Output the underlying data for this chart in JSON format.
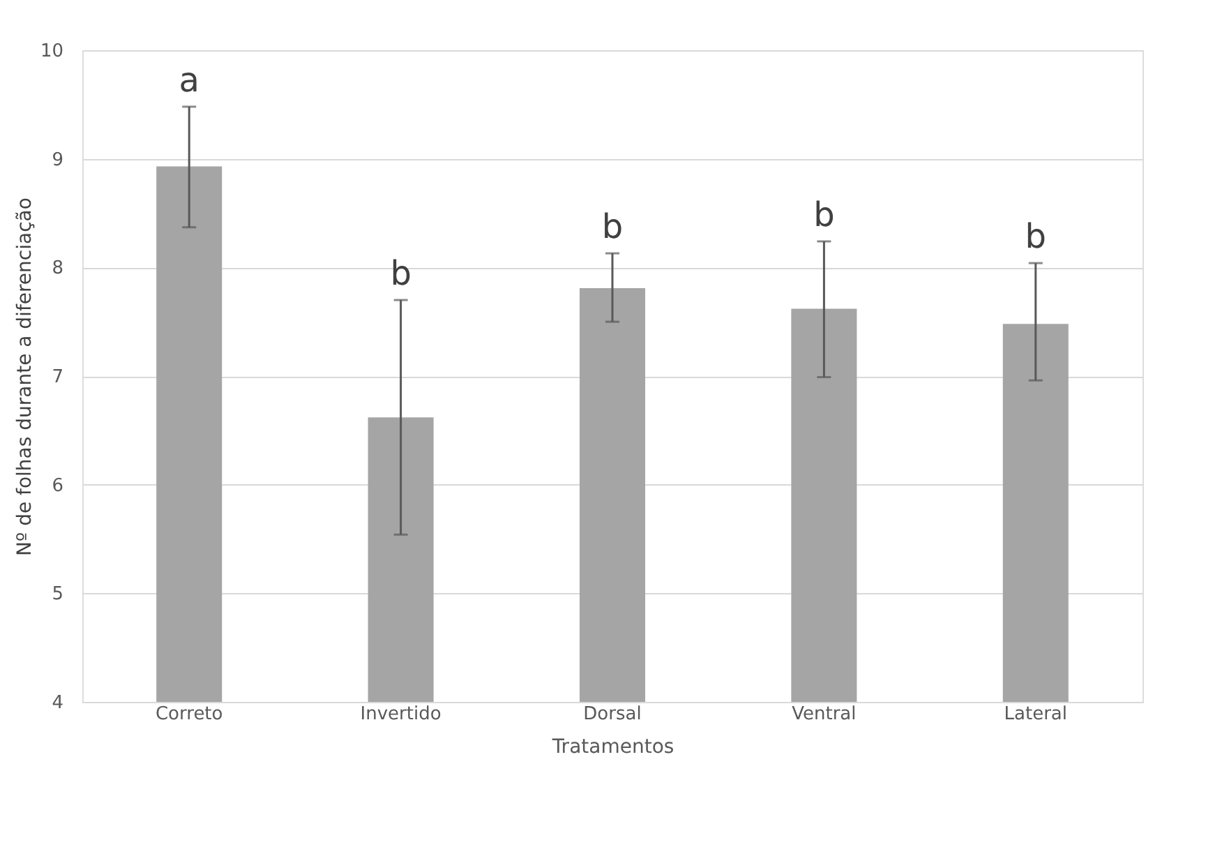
{
  "chart_data": {
    "type": "bar",
    "xlabel": "Tratamentos",
    "ylabel": "Nº de folhas durante a diferenciação",
    "categories": [
      "Correto",
      "Invertido",
      "Dorsal",
      "Ventral",
      "Lateral"
    ],
    "values": [
      8.93,
      6.62,
      7.81,
      7.62,
      7.48
    ],
    "errors": [
      [
        8.37,
        9.48
      ],
      [
        5.54,
        7.7
      ],
      [
        7.5,
        8.13
      ],
      [
        6.99,
        8.24
      ],
      [
        6.96,
        8.04
      ]
    ],
    "color": "#a5a5a5",
    "ylim": [
      4,
      10
    ],
    "yticks": [
      4,
      5,
      6,
      7,
      8,
      9,
      10
    ],
    "grid": "y",
    "annotations": [
      "a",
      "b",
      "b",
      "b",
      "b"
    ]
  }
}
